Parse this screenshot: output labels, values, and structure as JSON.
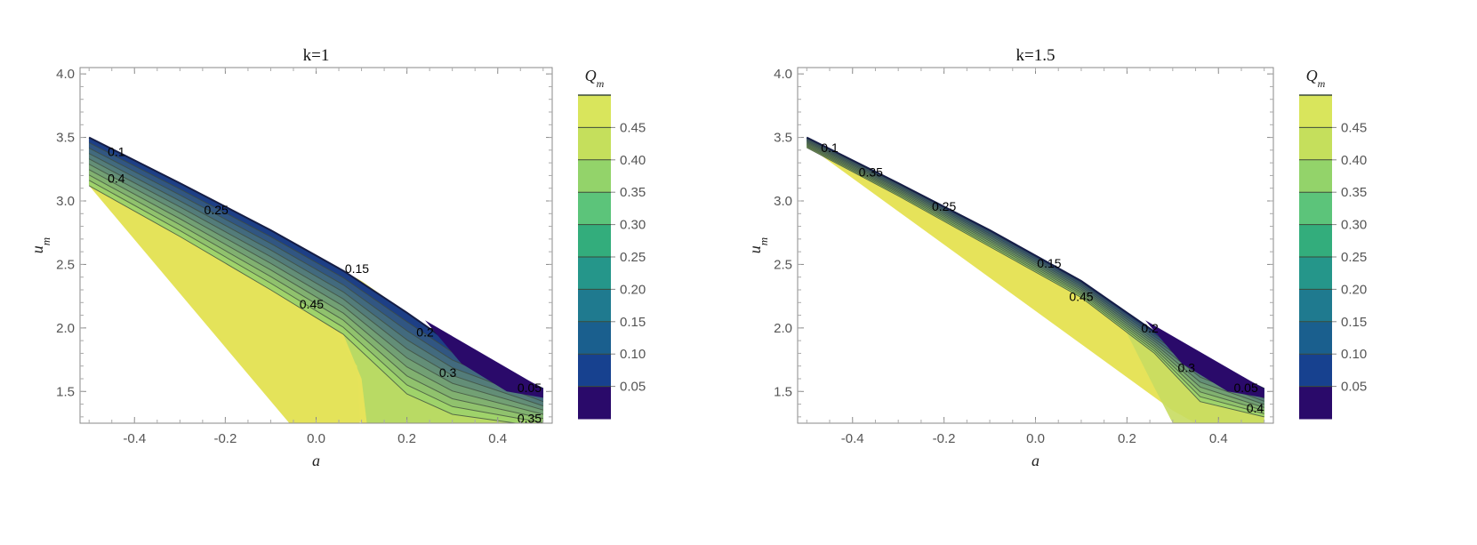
{
  "chart_data": [
    {
      "type": "contour",
      "title": "k=1",
      "xlabel": "a",
      "ylabel": "u",
      "ylabel_sub": "m",
      "xlim": [
        -0.52,
        0.52
      ],
      "ylim": [
        1.25,
        4.05
      ],
      "xticks": [
        "-0.4",
        "-0.2",
        "0.0",
        "0.2",
        "0.4"
      ],
      "xtick_values": [
        -0.4,
        -0.2,
        0.0,
        0.2,
        0.4
      ],
      "yticks": [
        "1.5",
        "2.0",
        "2.5",
        "3.0",
        "3.5",
        "4.0"
      ],
      "ytick_values": [
        1.5,
        2.0,
        2.5,
        3.0,
        3.5,
        4.0
      ],
      "top_boundary": [
        [
          -0.5,
          3.5
        ],
        [
          -0.3,
          3.14
        ],
        [
          -0.1,
          2.77
        ],
        [
          0.1,
          2.37
        ],
        [
          0.3,
          1.87
        ],
        [
          0.5,
          1.52
        ]
      ],
      "lower_boundary": [
        [
          -0.5,
          3.12
        ],
        [
          0.1,
          1.25
        ]
      ],
      "right_boundary": [
        [
          0.5,
          1.52
        ],
        [
          0.5,
          1.25
        ]
      ],
      "contour_labels": [
        {
          "text": "0.1",
          "x": -0.44,
          "y": 3.38
        },
        {
          "text": "0.4",
          "x": -0.44,
          "y": 3.17
        },
        {
          "text": "0.25",
          "x": -0.22,
          "y": 2.92
        },
        {
          "text": "0.15",
          "x": 0.09,
          "y": 2.46
        },
        {
          "text": "0.45",
          "x": -0.01,
          "y": 2.18
        },
        {
          "text": "0.2",
          "x": 0.24,
          "y": 1.96
        },
        {
          "text": "0.3",
          "x": 0.29,
          "y": 1.64
        },
        {
          "text": "0.05",
          "x": 0.47,
          "y": 1.52
        },
        {
          "text": "0.35",
          "x": 0.47,
          "y": 1.28
        }
      ],
      "colorbar": {
        "title": "Q",
        "title_sub": "m",
        "ticks": [
          "0.45",
          "0.40",
          "0.35",
          "0.30",
          "0.25",
          "0.20",
          "0.15",
          "0.10",
          "0.05"
        ],
        "colors": [
          "#2a0a6a",
          "#17418f",
          "#1a5f8e",
          "#1f7a8f",
          "#25968a",
          "#33ad7c",
          "#5cc47a",
          "#93d36a",
          "#c5df5c",
          "#d9e55c"
        ]
      }
    },
    {
      "type": "contour",
      "title": "k=1.5",
      "xlabel": "a",
      "ylabel": "u",
      "ylabel_sub": "m",
      "xlim": [
        -0.52,
        0.52
      ],
      "ylim": [
        1.25,
        4.05
      ],
      "xticks": [
        "-0.4",
        "-0.2",
        "0.0",
        "0.2",
        "0.4"
      ],
      "xtick_values": [
        -0.4,
        -0.2,
        0.0,
        0.2,
        0.4
      ],
      "yticks": [
        "1.5",
        "2.0",
        "2.5",
        "3.0",
        "3.5",
        "4.0"
      ],
      "ytick_values": [
        1.5,
        2.0,
        2.5,
        3.0,
        3.5,
        4.0
      ],
      "top_boundary": [
        [
          -0.5,
          3.5
        ],
        [
          -0.3,
          3.14
        ],
        [
          -0.1,
          2.77
        ],
        [
          0.1,
          2.37
        ],
        [
          0.3,
          1.87
        ],
        [
          0.5,
          1.52
        ]
      ],
      "lower_boundary": [
        [
          -0.5,
          3.44
        ],
        [
          0.3,
          1.35
        ],
        [
          0.35,
          1.25
        ]
      ],
      "right_boundary": [
        [
          0.5,
          1.52
        ],
        [
          0.5,
          1.25
        ]
      ],
      "contour_labels": [
        {
          "text": "0.1",
          "x": -0.45,
          "y": 3.41
        },
        {
          "text": "0.35",
          "x": -0.36,
          "y": 3.22
        },
        {
          "text": "0.25",
          "x": -0.2,
          "y": 2.95
        },
        {
          "text": "0.15",
          "x": 0.03,
          "y": 2.5
        },
        {
          "text": "0.45",
          "x": 0.1,
          "y": 2.24
        },
        {
          "text": "0.2",
          "x": 0.25,
          "y": 1.99
        },
        {
          "text": "0.3",
          "x": 0.33,
          "y": 1.68
        },
        {
          "text": "0.05",
          "x": 0.46,
          "y": 1.52
        },
        {
          "text": "0.4",
          "x": 0.48,
          "y": 1.36
        }
      ],
      "colorbar": {
        "title": "Q",
        "title_sub": "m",
        "ticks": [
          "0.45",
          "0.40",
          "0.35",
          "0.30",
          "0.25",
          "0.20",
          "0.15",
          "0.10",
          "0.05"
        ],
        "colors": [
          "#2a0a6a",
          "#17418f",
          "#1a5f8e",
          "#1f7a8f",
          "#25968a",
          "#33ad7c",
          "#5cc47a",
          "#93d36a",
          "#c5df5c",
          "#d9e55c"
        ]
      }
    }
  ]
}
